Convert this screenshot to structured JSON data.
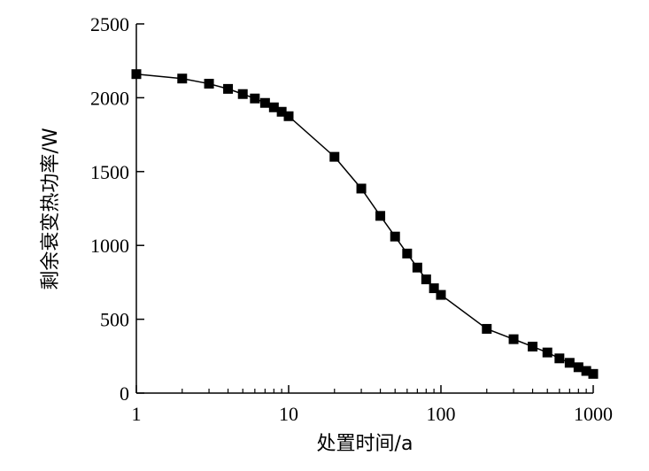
{
  "chart_data": {
    "type": "line",
    "title": "",
    "xlabel": "处置时间/a",
    "ylabel": "剩余衰变热功率/W",
    "xscale": "log",
    "xlim": [
      1,
      1000
    ],
    "ylim": [
      0,
      2500
    ],
    "grid": false,
    "legend": "none",
    "x_ticks": [
      1,
      10,
      100,
      1000
    ],
    "x_tick_labels": [
      "1",
      "10",
      "100",
      "1000"
    ],
    "y_ticks": [
      0,
      500,
      1000,
      1500,
      2000,
      2500
    ],
    "y_tick_labels": [
      "0",
      "500",
      "1000",
      "1500",
      "2000",
      "2500"
    ],
    "marker": "square",
    "series": [
      {
        "color": "#000000",
        "x": [
          1,
          2,
          3,
          4,
          5,
          6,
          7,
          8,
          9,
          10,
          20,
          30,
          40,
          50,
          60,
          70,
          80,
          90,
          100,
          200,
          300,
          400,
          500,
          600,
          700,
          800,
          900,
          1000
        ],
        "y": [
          2160,
          2130,
          2095,
          2060,
          2025,
          1995,
          1965,
          1935,
          1905,
          1875,
          1600,
          1385,
          1200,
          1060,
          945,
          850,
          770,
          710,
          665,
          435,
          365,
          315,
          275,
          235,
          205,
          175,
          150,
          130
        ]
      }
    ]
  }
}
